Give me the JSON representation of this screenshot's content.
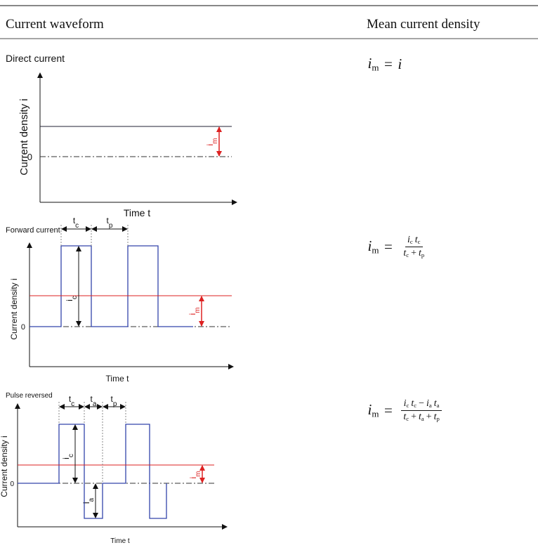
{
  "table": {
    "headers": [
      "Current waveform",
      "Mean current density"
    ],
    "rows": [
      {
        "waveform": {
          "label": "Direct current",
          "y_axis": "Current density i",
          "x_axis": "Time t",
          "zero": "0",
          "annotations": [
            {
              "base": "i",
              "sub": "m"
            }
          ]
        },
        "formula": {
          "lhs": {
            "base": "i",
            "sub": "m"
          },
          "eq": "=",
          "rhs": [
            {
              "base": "i"
            }
          ]
        }
      },
      {
        "waveform": {
          "label": "Forward current",
          "y_axis": "Current density i",
          "x_axis": "Time t",
          "zero": "0",
          "annotations": [
            {
              "base": "t",
              "sub": "c"
            },
            {
              "base": "t",
              "sub": "p"
            },
            {
              "base": "i",
              "sub": "c"
            },
            {
              "base": "i",
              "sub": "m"
            }
          ]
        },
        "formula": {
          "lhs": {
            "base": "i",
            "sub": "m"
          },
          "eq": "=",
          "numerator": [
            {
              "base": "i",
              "sub": "c"
            },
            {
              "base": "t",
              "sub": "c"
            }
          ],
          "denominator": [
            {
              "base": "t",
              "sub": "c"
            },
            {
              "base": "+"
            },
            {
              "base": "t",
              "sub": "p"
            }
          ]
        }
      },
      {
        "waveform": {
          "label": "Pulse reversed",
          "y_axis": "Current density i",
          "x_axis": "Time t",
          "zero": "0",
          "annotations": [
            {
              "base": "t",
              "sub": "c"
            },
            {
              "base": "t",
              "sub": "a"
            },
            {
              "base": "t",
              "sub": "p"
            },
            {
              "base": "i",
              "sub": "c"
            },
            {
              "base": "i",
              "sub": "a"
            },
            {
              "base": "i",
              "sub": "m"
            }
          ]
        },
        "formula": {
          "lhs": {
            "base": "i",
            "sub": "m"
          },
          "eq": "=",
          "numerator": [
            {
              "base": "i",
              "sub": "c"
            },
            {
              "base": "t",
              "sub": "c"
            },
            {
              "base": "−"
            },
            {
              "base": "i",
              "sub": "a"
            },
            {
              "base": "t",
              "sub": "a"
            }
          ],
          "denominator": [
            {
              "base": "t",
              "sub": "c"
            },
            {
              "base": "+"
            },
            {
              "base": "t",
              "sub": "a"
            },
            {
              "base": "+"
            },
            {
              "base": "t",
              "sub": "p"
            }
          ]
        }
      }
    ]
  }
}
